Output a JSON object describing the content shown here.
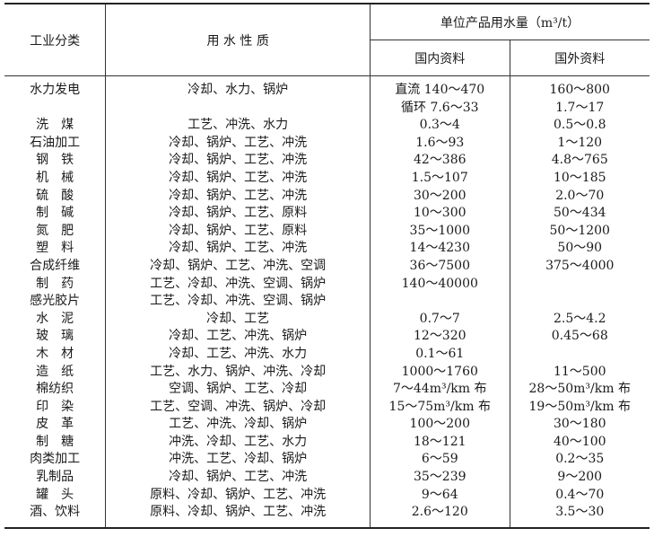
{
  "header": {
    "category": "工业分类",
    "nature": "用 水 性 质",
    "unit_group": "单位产品用水量（m³/t）",
    "domestic": "国内资料",
    "foreign": "国外资料"
  },
  "rows": [
    {
      "category": "水力发电",
      "nature": "冷却、水力、锅炉",
      "domestic": "直流 140～470",
      "foreign": "160～800"
    },
    {
      "category": "",
      "nature": "",
      "domestic": "循环 7.6～33",
      "foreign": "1.7～17"
    },
    {
      "category": "洗　煤",
      "nature": "工艺、冲洗、水力",
      "domestic": "0.3～4",
      "foreign": "0.5～0.8"
    },
    {
      "category": "石油加工",
      "nature": "冷却、锅炉、工艺、冲洗",
      "domestic": "1.6～93",
      "foreign": "1～120"
    },
    {
      "category": "钢　铁",
      "nature": "冷却、锅炉、工艺、冲洗",
      "domestic": "42～386",
      "foreign": "4.8～765"
    },
    {
      "category": "机　械",
      "nature": "冷却、锅炉、工艺、冲洗",
      "domestic": "1.5～107",
      "foreign": "10～185"
    },
    {
      "category": "硫　酸",
      "nature": "冷却、锅炉、工艺、冲洗",
      "domestic": "30～200",
      "foreign": "2.0～70"
    },
    {
      "category": "制　碱",
      "nature": "冷却、锅炉、工艺、原料",
      "domestic": "10～300",
      "foreign": "50～434"
    },
    {
      "category": "氮　肥",
      "nature": "冷却、锅炉、工艺、原料",
      "domestic": "35～1000",
      "foreign": "50～1200"
    },
    {
      "category": "塑　料",
      "nature": "冷却、锅炉、工艺、冲洗",
      "domestic": "14～4230",
      "foreign": "50～90"
    },
    {
      "category": "合成纤维",
      "nature": "冷却、锅炉、工艺、冲洗、空调",
      "domestic": "36～7500",
      "foreign": "375～4000"
    },
    {
      "category": "制　药",
      "nature": "工艺、冷却、冲洗、空调、锅炉",
      "domestic": "140～40000",
      "foreign": ""
    },
    {
      "category": "感光胶片",
      "nature": "工艺、冷却、冲洗、空调、锅炉",
      "domestic": "",
      "foreign": ""
    },
    {
      "category": "水　泥",
      "nature": "冷却、工艺",
      "domestic": "0.7～7",
      "foreign": "2.5～4.2"
    },
    {
      "category": "玻　璃",
      "nature": "冷却、工艺、冲洗、锅炉",
      "domestic": "12～320",
      "foreign": "0.45～68"
    },
    {
      "category": "木　材",
      "nature": "冷却、工艺、冲洗、水力",
      "domestic": "0.1～61",
      "foreign": ""
    },
    {
      "category": "造　纸",
      "nature": "工艺、水力、锅炉、冲洗、冷却",
      "domestic": "1000～1760",
      "foreign": "11～500"
    },
    {
      "category": "棉纺织",
      "nature": "空调、锅炉、工艺、冷却",
      "domestic": "7～44m³/km 布",
      "foreign": "28～50m³/km 布"
    },
    {
      "category": "印　染",
      "nature": "工艺、空调、冲洗、锅炉、冷却",
      "domestic": "15～75m³/km 布",
      "foreign": "19～50m³/km 布"
    },
    {
      "category": "皮　革",
      "nature": "工艺、冲洗、冷却、锅炉",
      "domestic": "100～200",
      "foreign": "30～180"
    },
    {
      "category": "制　糖",
      "nature": "冲洗、冷却、工艺、水力",
      "domestic": "18～121",
      "foreign": "40～100"
    },
    {
      "category": "肉类加工",
      "nature": "冲洗、工艺、冷却、锅炉",
      "domestic": "6～59",
      "foreign": "0.2～35"
    },
    {
      "category": "乳制品",
      "nature": "冷却、锅炉、工艺、冲洗",
      "domestic": "35～239",
      "foreign": "9～200"
    },
    {
      "category": "罐　头",
      "nature": "原料、冷却、锅炉、工艺、冲洗",
      "domestic": "9～64",
      "foreign": "0.4～70"
    },
    {
      "category": "酒、饮料",
      "nature": "原料、冷却、锅炉、工艺、冲洗",
      "domestic": "2.6～120",
      "foreign": "3.5～30"
    }
  ]
}
